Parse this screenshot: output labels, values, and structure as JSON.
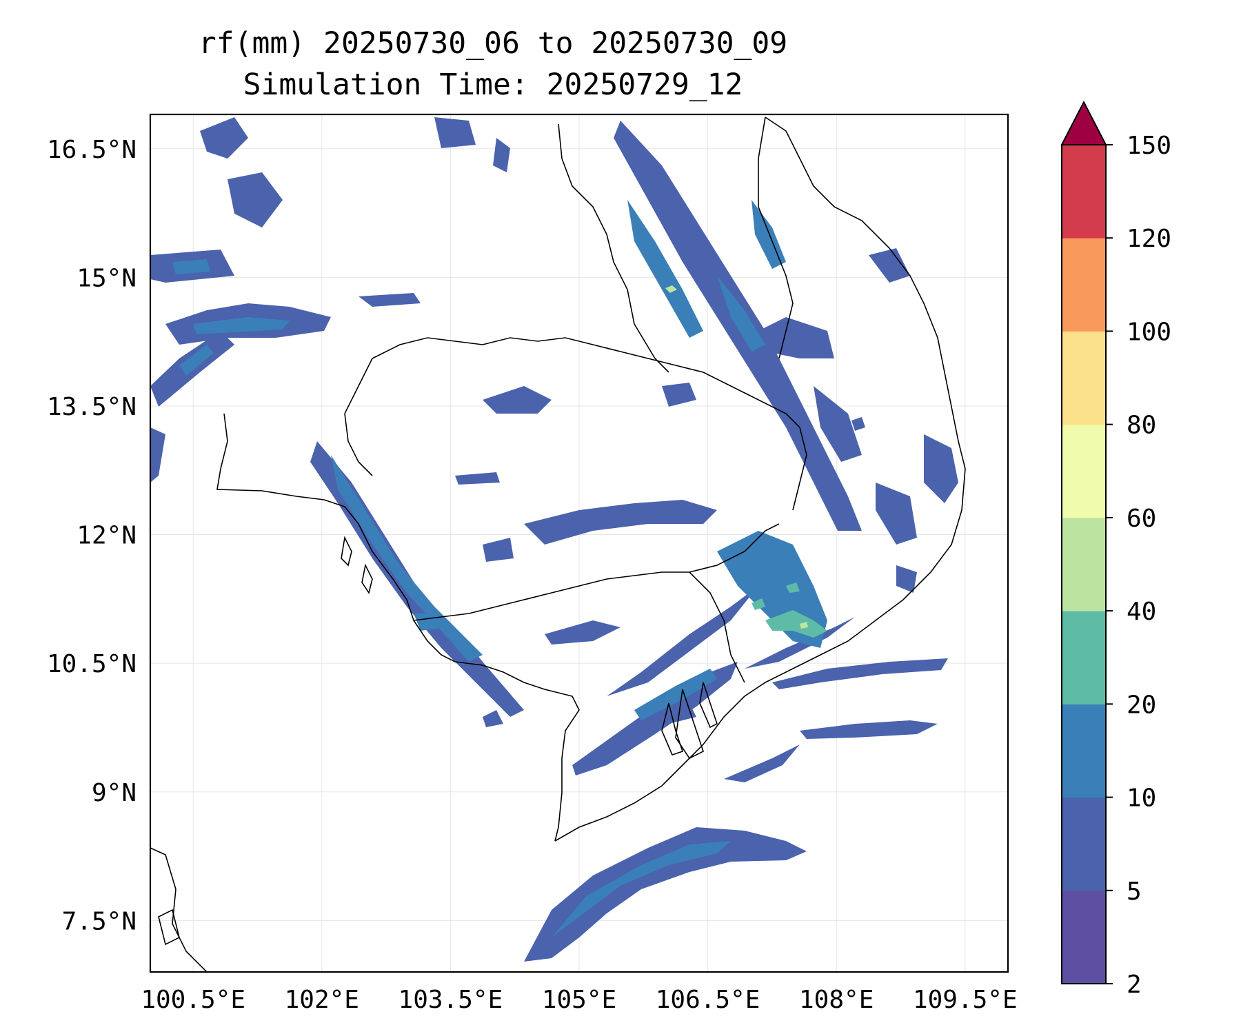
{
  "title": {
    "line1": "rf(mm) 20250730_06 to 20250730_09",
    "line2": "Simulation Time: 20250729_12"
  },
  "map": {
    "projection": "plate-carree",
    "lon_range": [
      100.0,
      110.0
    ],
    "lat_range": [
      6.9,
      16.9
    ],
    "gridlines": true,
    "x_ticks": [
      {
        "value": 100.5,
        "label": "100.5°E"
      },
      {
        "value": 102.0,
        "label": "102°E"
      },
      {
        "value": 103.5,
        "label": "103.5°E"
      },
      {
        "value": 105.0,
        "label": "105°E"
      },
      {
        "value": 106.5,
        "label": "106.5°E"
      },
      {
        "value": 108.0,
        "label": "108°E"
      },
      {
        "value": 109.5,
        "label": "109.5°E"
      }
    ],
    "y_ticks": [
      {
        "value": 16.5,
        "label": "16.5°N"
      },
      {
        "value": 15.0,
        "label": "15°N"
      },
      {
        "value": 13.5,
        "label": "13.5°N"
      },
      {
        "value": 12.0,
        "label": "12°N"
      },
      {
        "value": 10.5,
        "label": "10.5°N"
      },
      {
        "value": 9.0,
        "label": "9°N"
      },
      {
        "value": 7.5,
        "label": "7.5°N"
      }
    ]
  },
  "colorbar": {
    "levels": [
      2,
      5,
      10,
      20,
      40,
      60,
      80,
      100,
      120,
      150
    ],
    "tick_labels": [
      "2",
      "5",
      "10",
      "20",
      "40",
      "60",
      "80",
      "100",
      "120",
      "150"
    ],
    "colors": [
      "#5e4fa2",
      "#4b62ad",
      "#3a7fb8",
      "#5ebca6",
      "#bde3a0",
      "#f1fbac",
      "#fbe08a",
      "#f99a5a",
      "#d33c4c"
    ],
    "extend_color": "#9e0142",
    "extend": "max"
  },
  "colors": {
    "rain_lt10": "#4b62ad",
    "rain_lt20": "#3a7fb8",
    "rain_lt40": "#5ebca6",
    "rain_lt60": "#bde3a0",
    "coast": "#000000",
    "grid": "#e5e5e5"
  }
}
